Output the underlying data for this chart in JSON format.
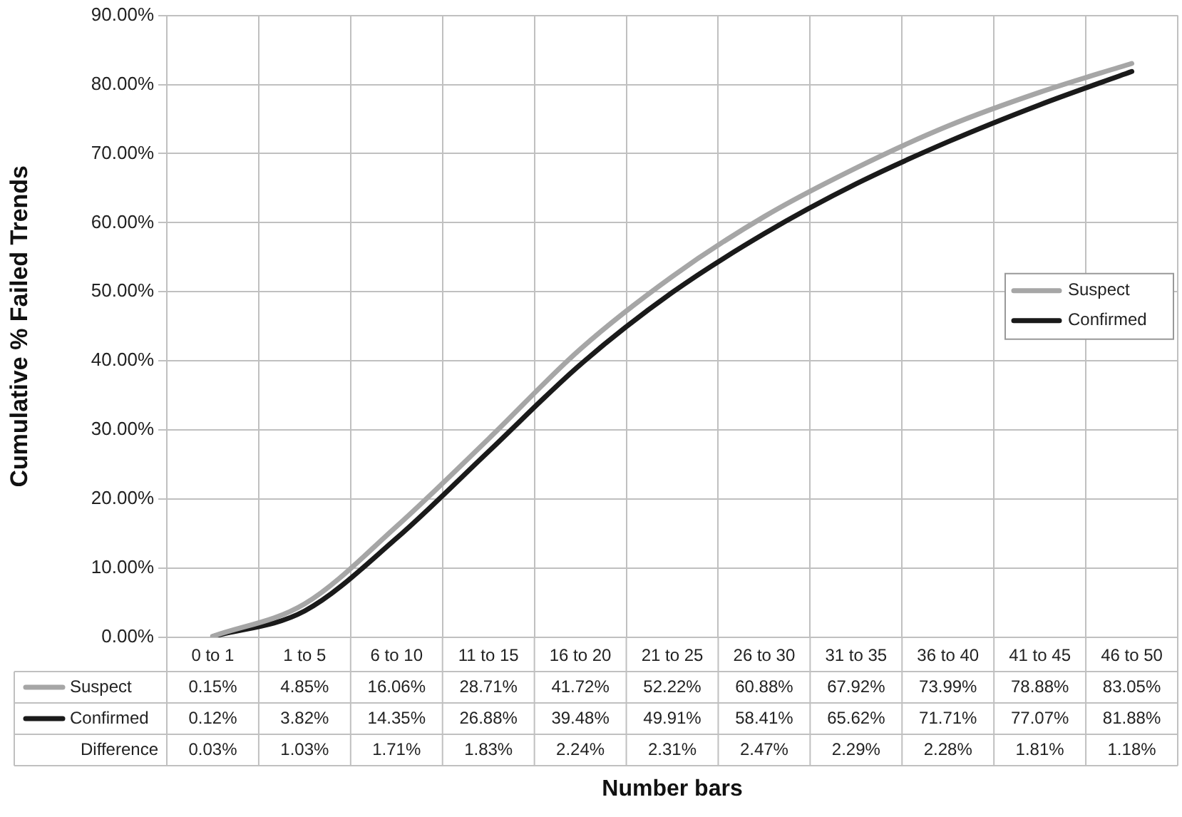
{
  "chart_data": {
    "type": "line",
    "xlabel": "Number bars",
    "ylabel": "Cumulative % Failed Trends",
    "categories": [
      "0 to 1",
      "1 to 5",
      "6 to 10",
      "11 to 15",
      "16 to 20",
      "21 to 25",
      "26 to 30",
      "31 to 35",
      "36 to 40",
      "41 to 45",
      "46 to 50"
    ],
    "series": [
      {
        "name": "Suspect",
        "color": "#a6a6a6",
        "values": [
          0.15,
          4.85,
          16.06,
          28.71,
          41.72,
          52.22,
          60.88,
          67.92,
          73.99,
          78.88,
          83.05
        ],
        "value_labels": [
          "0.15%",
          "4.85%",
          "16.06%",
          "28.71%",
          "41.72%",
          "52.22%",
          "60.88%",
          "67.92%",
          "73.99%",
          "78.88%",
          "83.05%"
        ]
      },
      {
        "name": "Confirmed",
        "color": "#1a1a1a",
        "values": [
          0.12,
          3.82,
          14.35,
          26.88,
          39.48,
          49.91,
          58.41,
          65.62,
          71.71,
          77.07,
          81.88
        ],
        "value_labels": [
          "0.12%",
          "3.82%",
          "14.35%",
          "26.88%",
          "39.48%",
          "49.91%",
          "58.41%",
          "65.62%",
          "71.71%",
          "77.07%",
          "81.88%"
        ]
      }
    ],
    "annotations": [
      "Difference",
      "0.03%",
      "1.03%",
      "1.71%",
      "1.83%",
      "2.24%",
      "2.31%",
      "2.47%",
      "2.29%",
      "2.28%",
      "1.81%",
      "1.18%"
    ],
    "ylim": [
      0,
      90
    ],
    "yticks": [
      {
        "value": 0,
        "label": "0.00%"
      },
      {
        "value": 10,
        "label": "10.00%"
      },
      {
        "value": 20,
        "label": "20.00%"
      },
      {
        "value": 30,
        "label": "30.00%"
      },
      {
        "value": 40,
        "label": "40.00%"
      },
      {
        "value": 50,
        "label": "50.00%"
      },
      {
        "value": 60,
        "label": "60.00%"
      },
      {
        "value": 70,
        "label": "70.00%"
      },
      {
        "value": 80,
        "label": "80.00%"
      },
      {
        "value": 90,
        "label": "90.00%"
      }
    ],
    "grid": true,
    "legend": "right",
    "marker": "none",
    "line_style": "solid"
  }
}
